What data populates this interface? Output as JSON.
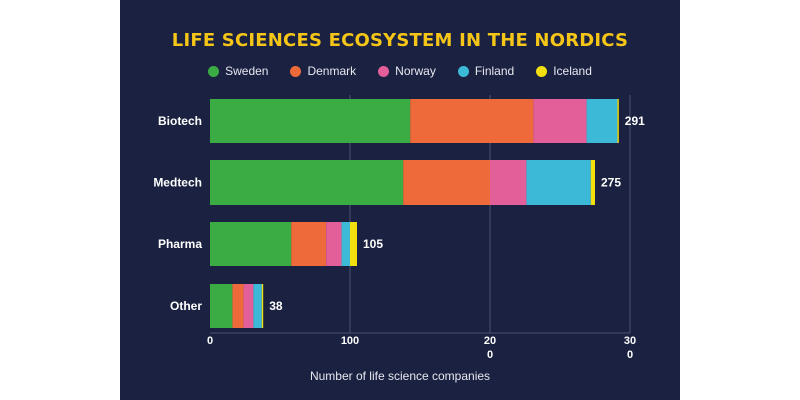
{
  "chart_data": {
    "type": "bar",
    "orientation": "horizontal",
    "stacked": true,
    "title": "LIFE SCIENCES ECOSYSTEM IN THE NORDICS",
    "xlabel": "Number of life science companies",
    "ylabel": "",
    "categories": [
      "Biotech",
      "Medtech",
      "Pharma",
      "Other"
    ],
    "totals": [
      291,
      275,
      105,
      38
    ],
    "series": [
      {
        "name": "Sweden",
        "color": "#3aac43",
        "values": [
          143,
          138,
          58,
          16
        ]
      },
      {
        "name": "Denmark",
        "color": "#ee6a3a",
        "values": [
          88,
          62,
          25,
          8
        ]
      },
      {
        "name": "Norway",
        "color": "#e25f9a",
        "values": [
          38,
          26,
          11,
          7
        ]
      },
      {
        "name": "Finland",
        "color": "#3db9d8",
        "values": [
          22,
          46,
          6,
          6
        ]
      },
      {
        "name": "Iceland",
        "color": "#f3df0e",
        "values": [
          1,
          3,
          5,
          1
        ]
      }
    ],
    "xlim": [
      0,
      300
    ],
    "xticks": [
      0,
      100,
      200,
      300
    ],
    "xtick_labels": [
      [
        "0"
      ],
      [
        "100"
      ],
      [
        "20",
        "0"
      ],
      [
        "30",
        "0"
      ]
    ],
    "grid": true,
    "legend_position": "top"
  }
}
